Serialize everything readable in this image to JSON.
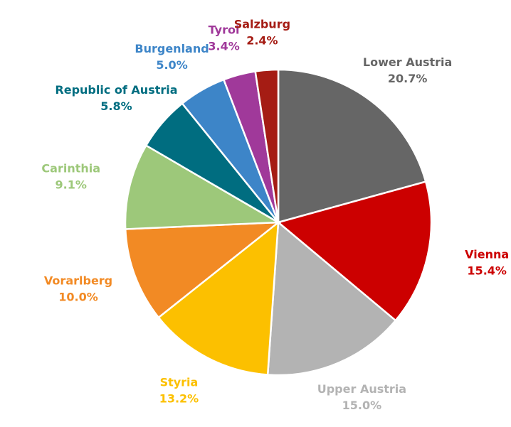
{
  "chart_data": {
    "type": "pie",
    "categories": [
      "Lower Austria",
      "Vienna",
      "Upper Austria",
      "Styria",
      "Vorarlberg",
      "Carinthia",
      "Republic of Austria",
      "Burgenland",
      "Tyrol",
      "Salzburg"
    ],
    "values": [
      20.7,
      15.4,
      15.0,
      13.2,
      10.0,
      9.1,
      5.8,
      5.0,
      3.4,
      2.4
    ],
    "value_labels": [
      "20.7%",
      "15.4%",
      "15.0%",
      "13.2%",
      "10.0%",
      "9.1%",
      "5.8%",
      "5.0%",
      "3.4%",
      "2.4%"
    ],
    "colors": [
      "#666666",
      "#cc0000",
      "#b3b3b3",
      "#fcc000",
      "#f28a24",
      "#9dc87a",
      "#006d80",
      "#3d85c8",
      "#a0399a",
      "#a51c14"
    ]
  }
}
